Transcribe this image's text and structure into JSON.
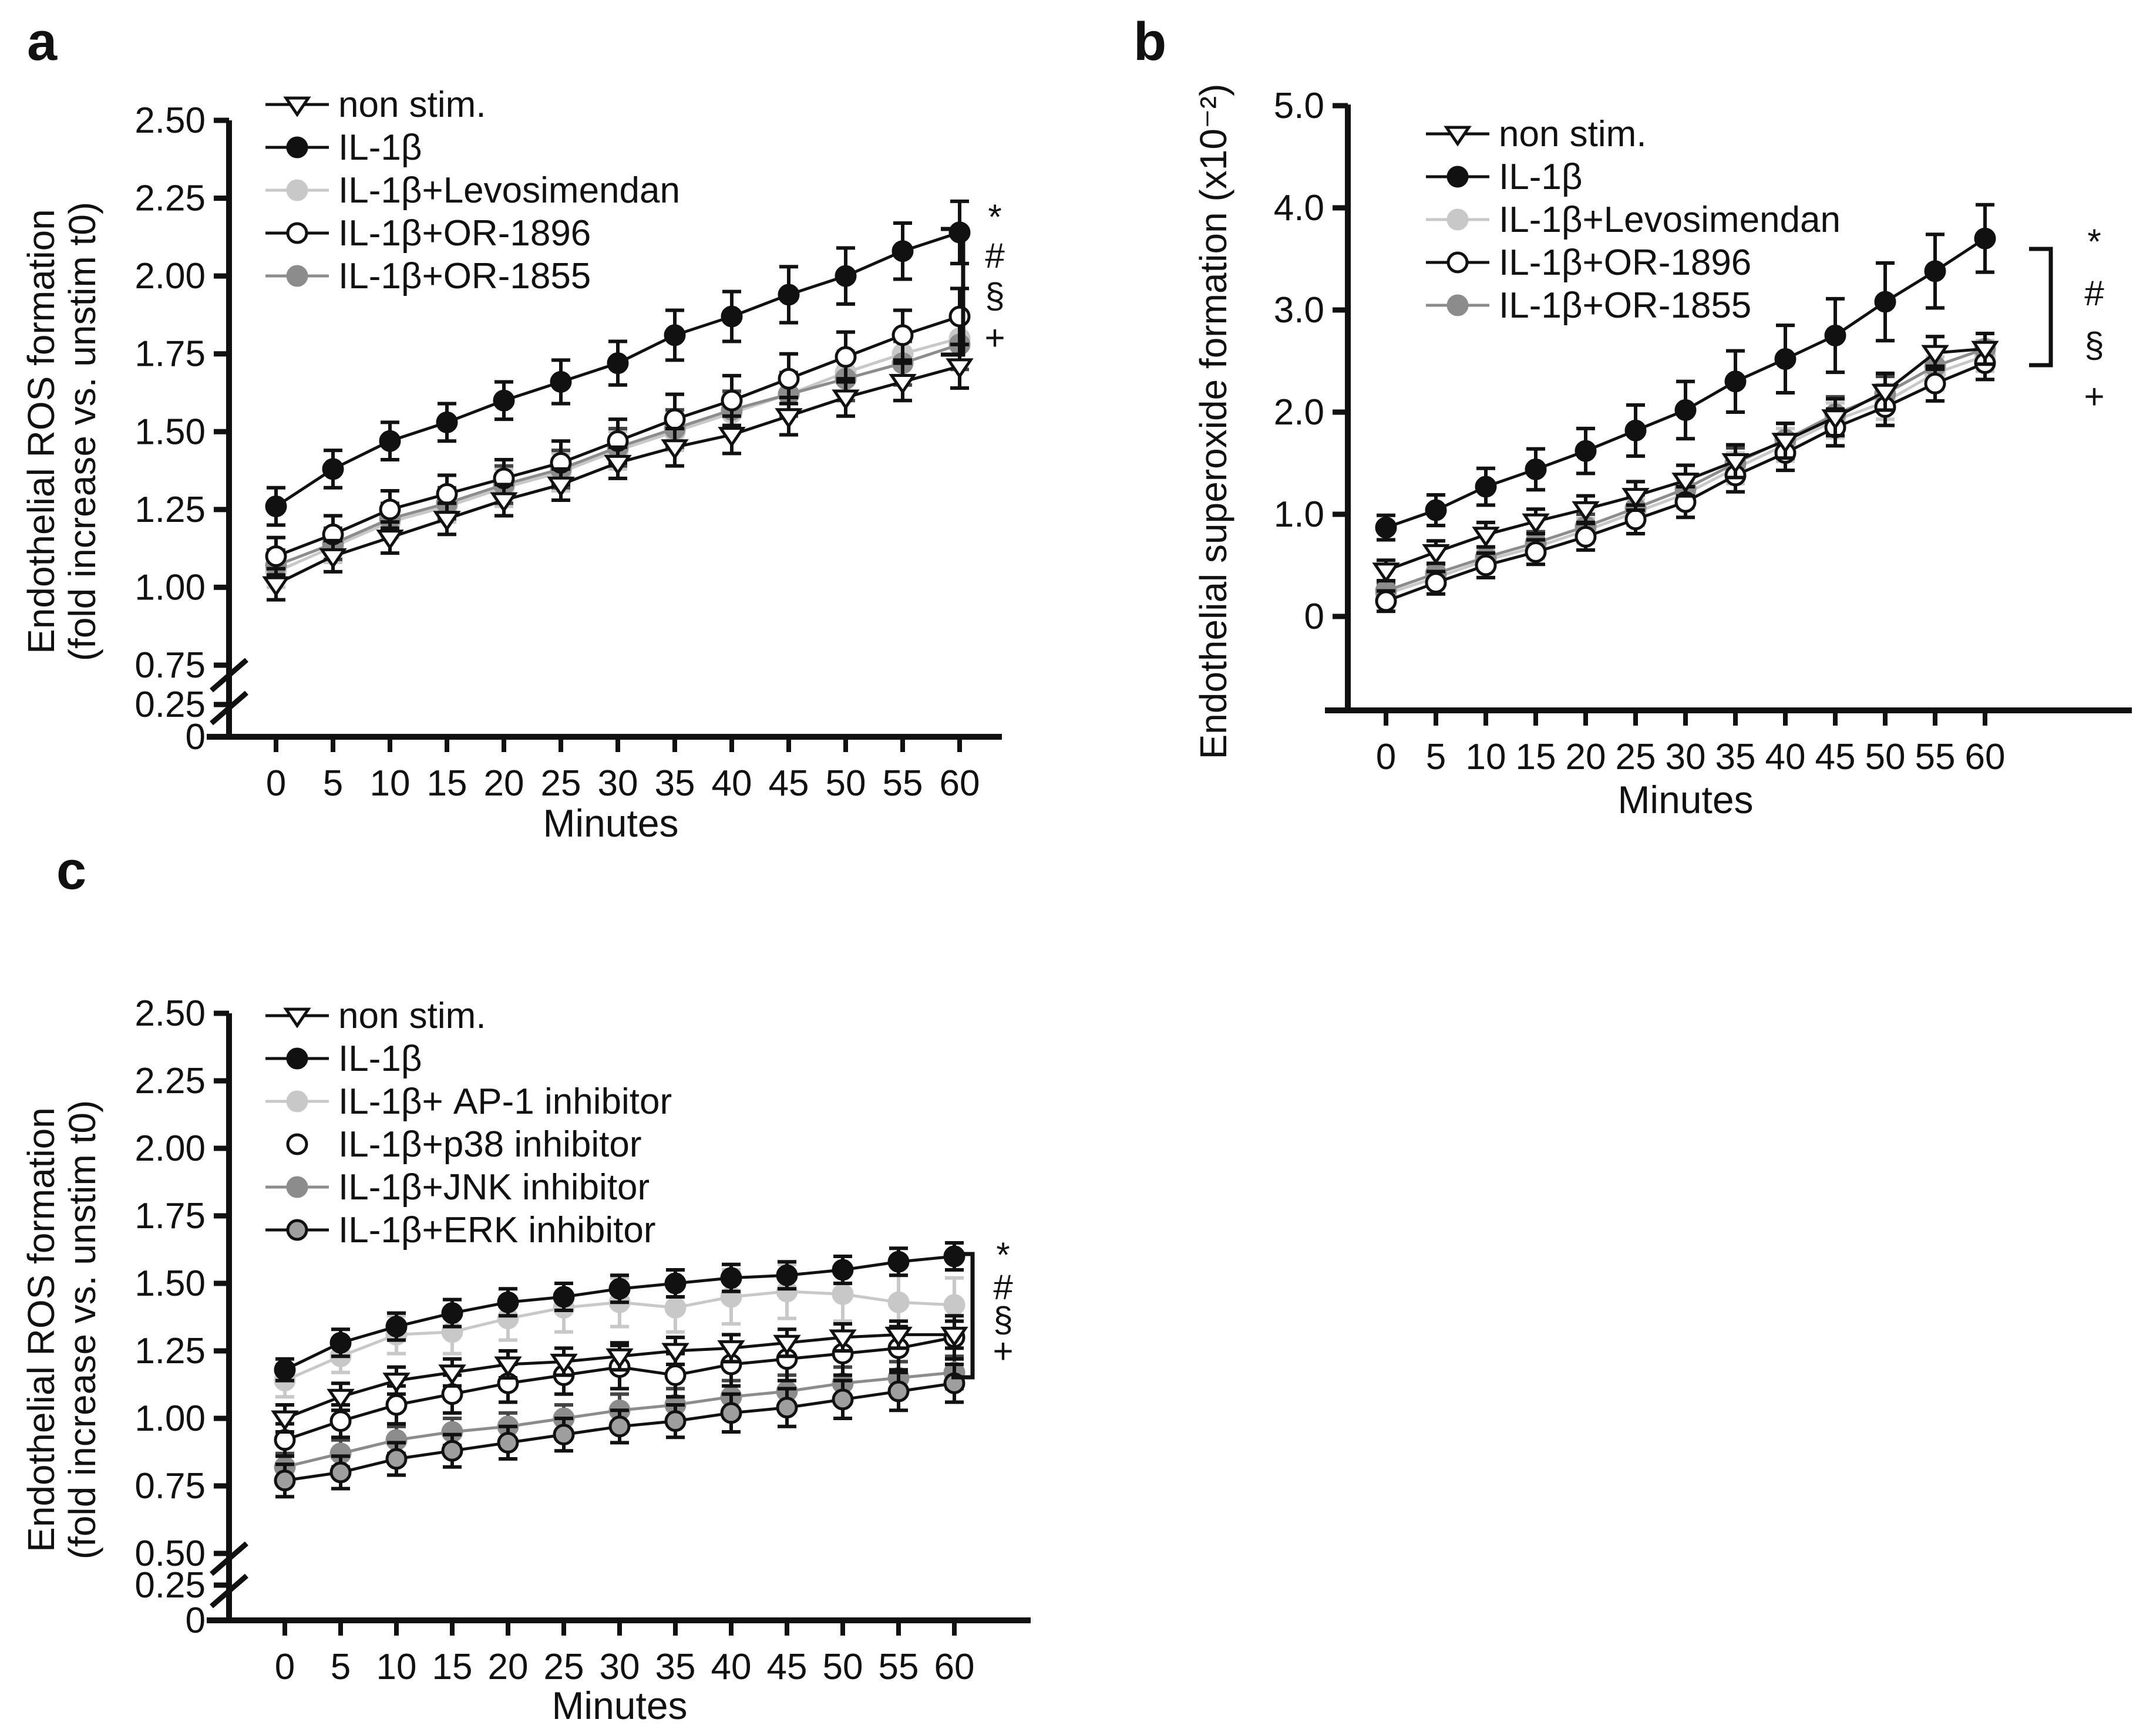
{
  "page": {
    "background": "#ffffff"
  },
  "colors": {
    "black": "#111111",
    "light_gray": "#c8c8c8",
    "mid_gray": "#8c8c8c",
    "erk_gray": "#9e9e9e",
    "dark_gray_err": "#444444"
  },
  "chart_data": [
    {
      "id": "a",
      "type": "line",
      "panel_label": "a",
      "xlabel": "Minutes",
      "ylabel_lines": [
        "Endothelial ROS formation",
        "(fold increase vs. unstim t0)"
      ],
      "x": [
        0,
        5,
        10,
        15,
        20,
        25,
        30,
        35,
        40,
        45,
        50,
        55,
        60
      ],
      "x_tick_labels": [
        "0",
        "5",
        "10",
        "15",
        "20",
        "25",
        "30",
        "35",
        "40",
        "45",
        "50",
        "55",
        "60"
      ],
      "y_ticks": {
        "labels": [
          "2.50",
          "2.25",
          "2.00",
          "1.75",
          "1.50",
          "1.25",
          "1.00",
          "0.75",
          "0.25",
          "0"
        ],
        "values": [
          2.5,
          2.25,
          2.0,
          1.75,
          1.5,
          1.25,
          1.0,
          0.75,
          0.25,
          0
        ]
      },
      "axis_break": true,
      "ylim": [
        0,
        2.5
      ],
      "legend_position": "top-left-inside",
      "significance_labels": [
        "*",
        "#",
        "§",
        "+"
      ],
      "series": [
        {
          "name": "non stim.",
          "marker": "triangle-down-open",
          "marker_fill": "#ffffff",
          "marker_stroke": "#111111",
          "line_color": "#111111",
          "values": [
            1.01,
            1.1,
            1.16,
            1.22,
            1.28,
            1.33,
            1.4,
            1.45,
            1.49,
            1.55,
            1.61,
            1.66,
            1.71
          ],
          "errors": [
            0.05,
            0.05,
            0.05,
            0.05,
            0.05,
            0.05,
            0.05,
            0.06,
            0.06,
            0.06,
            0.06,
            0.06,
            0.07
          ]
        },
        {
          "name": "IL-1β",
          "marker": "circle",
          "marker_fill": "#111111",
          "marker_stroke": "#111111",
          "line_color": "#111111",
          "values": [
            1.26,
            1.38,
            1.47,
            1.53,
            1.6,
            1.66,
            1.72,
            1.81,
            1.87,
            1.94,
            2.0,
            2.08,
            2.14
          ],
          "errors": [
            0.06,
            0.06,
            0.06,
            0.06,
            0.06,
            0.07,
            0.07,
            0.08,
            0.08,
            0.09,
            0.09,
            0.09,
            0.1
          ]
        },
        {
          "name": "IL-1β+Levosimendan",
          "marker": "circle",
          "marker_fill": "#c8c8c8",
          "marker_stroke": "#c8c8c8",
          "line_color": "#c8c8c8",
          "error_color": "#c8c8c8",
          "values": [
            1.05,
            1.13,
            1.21,
            1.26,
            1.32,
            1.37,
            1.44,
            1.5,
            1.56,
            1.62,
            1.69,
            1.75,
            1.8
          ],
          "errors": [
            0.05,
            0.05,
            0.05,
            0.05,
            0.06,
            0.06,
            0.06,
            0.06,
            0.06,
            0.07,
            0.07,
            0.07,
            0.08
          ]
        },
        {
          "name": "IL-1β+OR-1896",
          "marker": "circle",
          "marker_fill": "#ffffff",
          "marker_stroke": "#111111",
          "line_color": "#111111",
          "values": [
            1.1,
            1.17,
            1.25,
            1.3,
            1.35,
            1.4,
            1.47,
            1.54,
            1.6,
            1.67,
            1.74,
            1.81,
            1.87
          ],
          "errors": [
            0.06,
            0.06,
            0.06,
            0.06,
            0.06,
            0.07,
            0.07,
            0.08,
            0.08,
            0.08,
            0.08,
            0.08,
            0.09
          ]
        },
        {
          "name": "IL-1β+OR-1855",
          "marker": "circle",
          "marker_fill": "#8c8c8c",
          "marker_stroke": "#8c8c8c",
          "line_color": "#8c8c8c",
          "error_color": "#444444",
          "values": [
            1.07,
            1.14,
            1.22,
            1.27,
            1.33,
            1.38,
            1.45,
            1.51,
            1.57,
            1.62,
            1.67,
            1.72,
            1.78
          ],
          "errors": [
            0.05,
            0.05,
            0.05,
            0.05,
            0.06,
            0.06,
            0.06,
            0.06,
            0.06,
            0.07,
            0.07,
            0.07,
            0.08
          ]
        }
      ]
    },
    {
      "id": "b",
      "type": "line",
      "panel_label": "b",
      "xlabel": "Minutes",
      "ylabel_lines": [
        "Endothelial superoxide formation (x10⁻²)"
      ],
      "x": [
        0,
        5,
        10,
        15,
        20,
        25,
        30,
        35,
        40,
        45,
        50,
        55,
        60
      ],
      "x_tick_labels": [
        "0",
        "5",
        "10",
        "15",
        "20",
        "25",
        "30",
        "35",
        "40",
        "45",
        "50",
        "55",
        "60"
      ],
      "y_ticks": {
        "labels": [
          "5.0",
          "4.0",
          "3.0",
          "2.0",
          "1.0",
          "0"
        ],
        "values": [
          5.0,
          4.0,
          3.0,
          2.0,
          1.0,
          0
        ]
      },
      "axis_break": false,
      "ylim": [
        0,
        5.0
      ],
      "legend_position": "top-left-inside",
      "significance_labels": [
        "*",
        "#",
        "§",
        "+"
      ],
      "series": [
        {
          "name": "non stim.",
          "marker": "triangle-down-open",
          "marker_fill": "#ffffff",
          "marker_stroke": "#111111",
          "line_color": "#111111",
          "values": [
            0.45,
            0.63,
            0.8,
            0.93,
            1.05,
            1.18,
            1.33,
            1.52,
            1.72,
            1.95,
            2.2,
            2.58,
            2.62
          ],
          "errors": [
            0.1,
            0.11,
            0.12,
            0.12,
            0.13,
            0.14,
            0.15,
            0.16,
            0.17,
            0.18,
            0.18,
            0.16,
            0.15
          ]
        },
        {
          "name": "IL-1β",
          "marker": "circle",
          "marker_fill": "#111111",
          "marker_stroke": "#111111",
          "line_color": "#111111",
          "values": [
            0.87,
            1.04,
            1.27,
            1.44,
            1.62,
            1.82,
            2.02,
            2.3,
            2.52,
            2.75,
            3.08,
            3.38,
            3.7
          ],
          "errors": [
            0.12,
            0.15,
            0.18,
            0.2,
            0.22,
            0.25,
            0.28,
            0.3,
            0.33,
            0.36,
            0.38,
            0.36,
            0.33
          ]
        },
        {
          "name": "IL-1β+Levosimendan",
          "marker": "circle",
          "marker_fill": "#c8c8c8",
          "marker_stroke": "#c8c8c8",
          "line_color": "#c8c8c8",
          "error_color": "#c8c8c8",
          "values": [
            0.22,
            0.38,
            0.55,
            0.68,
            0.84,
            1.02,
            1.2,
            1.45,
            1.68,
            1.92,
            2.1,
            2.38,
            2.55
          ],
          "errors": [
            0.08,
            0.09,
            0.1,
            0.11,
            0.12,
            0.13,
            0.14,
            0.15,
            0.16,
            0.17,
            0.17,
            0.16,
            0.15
          ]
        },
        {
          "name": "IL-1β+OR-1896",
          "marker": "circle",
          "marker_fill": "#ffffff",
          "marker_stroke": "#111111",
          "line_color": "#111111",
          "values": [
            0.15,
            0.33,
            0.5,
            0.63,
            0.78,
            0.95,
            1.12,
            1.38,
            1.6,
            1.85,
            2.05,
            2.28,
            2.48
          ],
          "errors": [
            0.1,
            0.11,
            0.12,
            0.12,
            0.13,
            0.14,
            0.15,
            0.16,
            0.17,
            0.18,
            0.18,
            0.17,
            0.16
          ]
        },
        {
          "name": "IL-1β+OR-1855",
          "marker": "circle",
          "marker_fill": "#8c8c8c",
          "marker_stroke": "#8c8c8c",
          "line_color": "#8c8c8c",
          "error_color": "#444444",
          "values": [
            0.25,
            0.42,
            0.58,
            0.72,
            0.88,
            1.06,
            1.25,
            1.5,
            1.73,
            1.98,
            2.18,
            2.45,
            2.62
          ],
          "errors": [
            0.08,
            0.09,
            0.1,
            0.11,
            0.12,
            0.13,
            0.14,
            0.15,
            0.16,
            0.17,
            0.17,
            0.16,
            0.15
          ]
        }
      ]
    },
    {
      "id": "c",
      "type": "line",
      "panel_label": "c",
      "xlabel": "Minutes",
      "ylabel_lines": [
        "Endothelial ROS formation",
        "(fold increase vs. unstim t0)"
      ],
      "x": [
        0,
        5,
        10,
        15,
        20,
        25,
        30,
        35,
        40,
        45,
        50,
        55,
        60
      ],
      "x_tick_labels": [
        "0",
        "5",
        "10",
        "15",
        "20",
        "25",
        "30",
        "35",
        "40",
        "45",
        "50",
        "55",
        "60"
      ],
      "y_ticks": {
        "labels": [
          "2.50",
          "2.25",
          "2.00",
          "1.75",
          "1.50",
          "1.25",
          "1.00",
          "0.75",
          "0.50",
          "0.25",
          "0"
        ],
        "values": [
          2.5,
          2.25,
          2.0,
          1.75,
          1.5,
          1.25,
          1.0,
          0.75,
          0.5,
          0.25,
          0
        ]
      },
      "axis_break": true,
      "ylim": [
        0,
        2.5
      ],
      "legend_position": "top-left-inside",
      "significance_labels": [
        "*",
        "#",
        "§",
        "+"
      ],
      "series": [
        {
          "name": "non stim.",
          "marker": "triangle-down-open",
          "marker_fill": "#ffffff",
          "marker_stroke": "#111111",
          "line_color": "#111111",
          "values": [
            1.0,
            1.08,
            1.14,
            1.17,
            1.2,
            1.21,
            1.23,
            1.25,
            1.26,
            1.28,
            1.3,
            1.31,
            1.31
          ],
          "errors": [
            0.05,
            0.05,
            0.05,
            0.05,
            0.05,
            0.05,
            0.05,
            0.05,
            0.05,
            0.05,
            0.05,
            0.05,
            0.05
          ]
        },
        {
          "name": "IL-1β",
          "marker": "circle",
          "marker_fill": "#111111",
          "marker_stroke": "#111111",
          "line_color": "#111111",
          "values": [
            1.18,
            1.28,
            1.34,
            1.39,
            1.43,
            1.45,
            1.48,
            1.5,
            1.52,
            1.53,
            1.55,
            1.58,
            1.6
          ],
          "errors": [
            0.04,
            0.05,
            0.05,
            0.05,
            0.05,
            0.05,
            0.05,
            0.05,
            0.05,
            0.05,
            0.05,
            0.05,
            0.05
          ]
        },
        {
          "name": "IL-1β+ AP-1 inhibitor",
          "marker": "circle",
          "marker_fill": "#c8c8c8",
          "marker_stroke": "#c8c8c8",
          "line_color": "#c8c8c8",
          "error_color": "#c8c8c8",
          "values": [
            1.14,
            1.23,
            1.31,
            1.32,
            1.37,
            1.41,
            1.43,
            1.41,
            1.45,
            1.47,
            1.46,
            1.43,
            1.42
          ],
          "errors": [
            0.06,
            0.06,
            0.07,
            0.08,
            0.08,
            0.09,
            0.09,
            0.09,
            0.1,
            0.1,
            0.1,
            0.1,
            0.1
          ]
        },
        {
          "name": "IL-1β+p38 inhibitor",
          "marker": "circle",
          "marker_fill": "#ffffff",
          "marker_stroke": "#111111",
          "line_color": "#111111",
          "legend_line": false,
          "values": [
            0.92,
            0.99,
            1.05,
            1.09,
            1.13,
            1.16,
            1.19,
            1.16,
            1.2,
            1.22,
            1.24,
            1.26,
            1.3
          ],
          "errors": [
            0.06,
            0.06,
            0.07,
            0.07,
            0.07,
            0.07,
            0.08,
            0.08,
            0.08,
            0.08,
            0.08,
            0.08,
            0.08
          ]
        },
        {
          "name": "IL-1β+JNK inhibitor",
          "marker": "circle",
          "marker_fill": "#8c8c8c",
          "marker_stroke": "#8c8c8c",
          "line_color": "#8c8c8c",
          "error_color": "#444444",
          "values": [
            0.82,
            0.87,
            0.92,
            0.95,
            0.97,
            1.0,
            1.03,
            1.05,
            1.08,
            1.1,
            1.13,
            1.15,
            1.17
          ],
          "errors": [
            0.05,
            0.05,
            0.05,
            0.05,
            0.05,
            0.05,
            0.06,
            0.06,
            0.06,
            0.06,
            0.06,
            0.06,
            0.06
          ]
        },
        {
          "name": "IL-1β+ERK inhibitor",
          "marker": "circle",
          "marker_fill": "#9e9e9e",
          "marker_stroke": "#111111",
          "line_color": "#111111",
          "values": [
            0.77,
            0.8,
            0.85,
            0.88,
            0.91,
            0.94,
            0.97,
            0.99,
            1.02,
            1.04,
            1.07,
            1.1,
            1.13
          ],
          "errors": [
            0.06,
            0.06,
            0.06,
            0.06,
            0.06,
            0.06,
            0.06,
            0.06,
            0.07,
            0.07,
            0.07,
            0.07,
            0.07
          ]
        }
      ]
    }
  ]
}
